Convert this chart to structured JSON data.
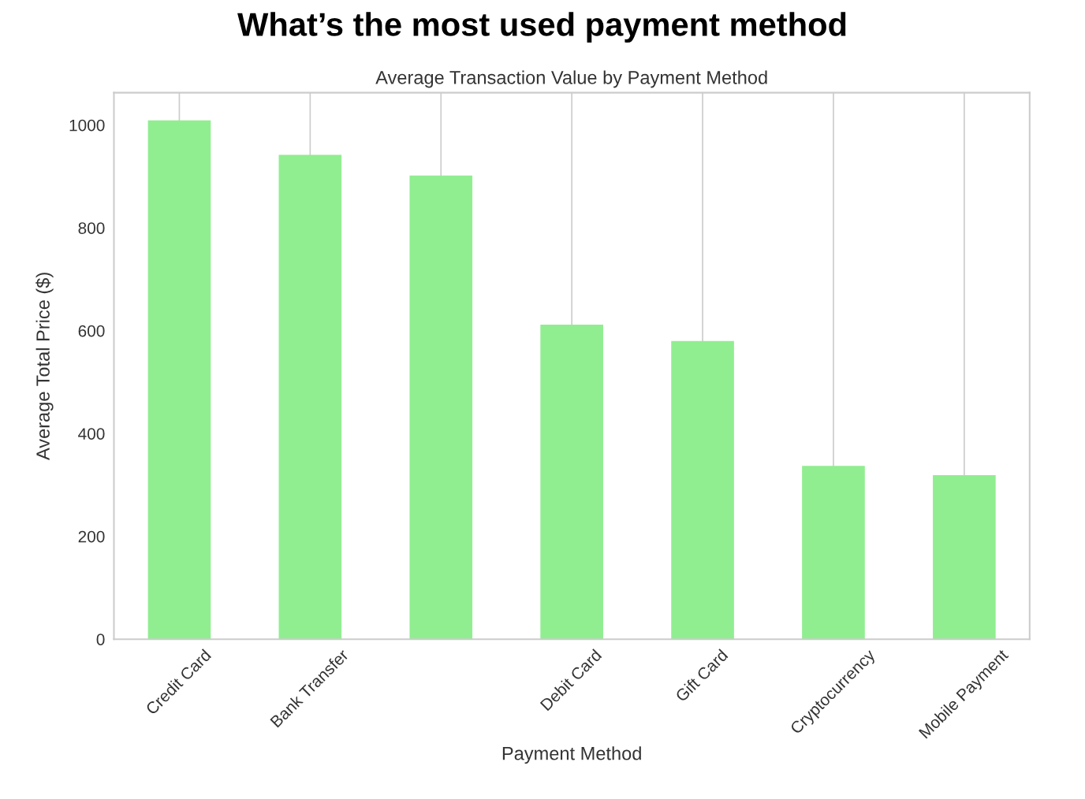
{
  "chart_data": {
    "type": "bar",
    "title": "What’s the most used payment method",
    "subtitle": "Average Transaction Value by Payment Method",
    "xlabel": "Payment Method",
    "ylabel": "Average Total Price ($)",
    "categories": [
      "Credit Card",
      "Bank Transfer",
      null,
      "Debit Card",
      "Gift Card",
      "Cryptocurrency",
      "Mobile Payment"
    ],
    "values": [
      1009,
      942,
      902,
      612,
      580,
      337,
      319
    ],
    "color": "#90ee90",
    "ylim": [
      0,
      1063
    ],
    "yticks": [
      0,
      200,
      400,
      600,
      800,
      1000
    ],
    "grid": "x",
    "legend": false
  }
}
